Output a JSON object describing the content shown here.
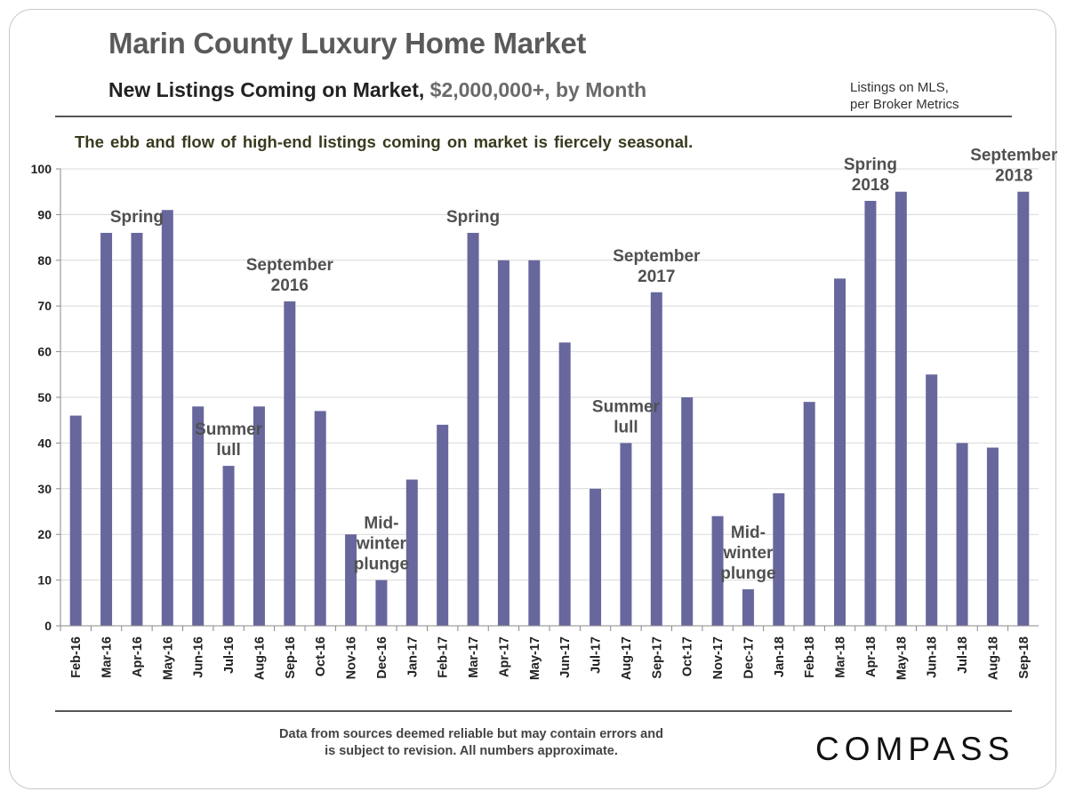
{
  "header": {
    "title": "Marin County Luxury Home Market",
    "subtitle_main": "New Listings Coming on Market,",
    "subtitle_muted": "$2,000,000+, by Month",
    "note_line1": "Listings on MLS,",
    "note_line2": "per Broker Metrics",
    "caption": "The ebb and flow of high-end listings coming on market is fiercely seasonal."
  },
  "footer": {
    "disclaimer_line1": "Data from sources deemed reliable but may contain errors and",
    "disclaimer_line2": "is subject to revision. All numbers approximate.",
    "logo": "COMPASS"
  },
  "colors": {
    "bar": "#67679e",
    "grid": "#d9d9d9",
    "axis": "#888888"
  },
  "chart_data": {
    "type": "bar",
    "title": "",
    "xlabel": "",
    "ylabel": "",
    "ylim": [
      0,
      100
    ],
    "yticks": [
      0,
      10,
      20,
      30,
      40,
      50,
      60,
      70,
      80,
      90,
      100
    ],
    "grid": "horizontal",
    "categories": [
      "Feb-16",
      "Mar-16",
      "Apr-16",
      "May-16",
      "Jun-16",
      "Jul-16",
      "Aug-16",
      "Sep-16",
      "Oct-16",
      "Nov-16",
      "Dec-16",
      "Jan-17",
      "Feb-17",
      "Mar-17",
      "Apr-17",
      "May-17",
      "Jun-17",
      "Jul-17",
      "Aug-17",
      "Sep-17",
      "Oct-17",
      "Nov-17",
      "Dec-17",
      "Jan-18",
      "Feb-18",
      "Mar-18",
      "Apr-18",
      "May-18",
      "Jun-18",
      "Jul-18",
      "Aug-18",
      "Sep-18"
    ],
    "values": [
      46,
      86,
      86,
      91,
      48,
      35,
      48,
      71,
      47,
      20,
      10,
      32,
      44,
      86,
      80,
      80,
      62,
      30,
      40,
      73,
      50,
      24,
      8,
      29,
      49,
      76,
      93,
      95,
      55,
      40,
      39,
      95
    ],
    "annotations": [
      {
        "lines": [
          "Spring"
        ],
        "at_category": "Apr-16"
      },
      {
        "lines": [
          "Summer",
          "lull"
        ],
        "at_category": "Jul-16"
      },
      {
        "lines": [
          "September",
          "2016"
        ],
        "at_category": "Sep-16"
      },
      {
        "lines": [
          "Mid-",
          "winter",
          "plunge"
        ],
        "at_category": "Dec-16"
      },
      {
        "lines": [
          "Spring"
        ],
        "at_category": "Mar-17"
      },
      {
        "lines": [
          "Summer",
          "lull"
        ],
        "at_category": "Aug-17"
      },
      {
        "lines": [
          "September",
          "2017"
        ],
        "at_category": "Sep-17"
      },
      {
        "lines": [
          "Mid-",
          "winter",
          "plunge"
        ],
        "at_category": "Dec-17"
      },
      {
        "lines": [
          "Spring",
          "2018"
        ],
        "at_category": "Apr-18"
      },
      {
        "lines": [
          "September",
          "2018"
        ],
        "at_category": "Sep-18"
      }
    ]
  }
}
